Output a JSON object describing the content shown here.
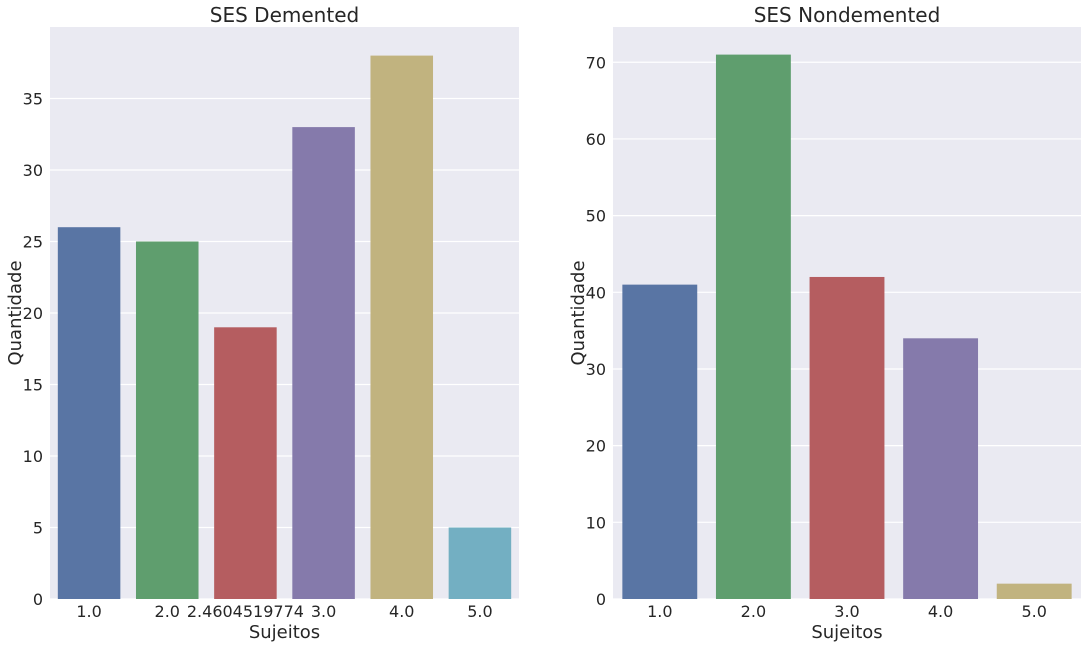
{
  "chart_data": [
    {
      "type": "bar",
      "title": "SES Demented",
      "xlabel": "Sujeitos",
      "ylabel": "Quantidade",
      "categories": [
        "1.0",
        "2.0",
        "2.4604519774",
        "3.0",
        "4.0",
        "5.0"
      ],
      "values": [
        26,
        25,
        19,
        33,
        38,
        5
      ],
      "colors": [
        "#5975a4",
        "#5f9e6e",
        "#b55d60",
        "#857aab",
        "#c1b37f",
        "#73afc2"
      ],
      "ylim": [
        0,
        40
      ],
      "yticks": [
        "0",
        "5",
        "10",
        "15",
        "20",
        "25",
        "30",
        "35"
      ],
      "grid": true
    },
    {
      "type": "bar",
      "title": "SES Nondemented",
      "xlabel": "Sujeitos",
      "ylabel": "Quantidade",
      "categories": [
        "1.0",
        "2.0",
        "3.0",
        "4.0",
        "5.0"
      ],
      "values": [
        41,
        71,
        42,
        34,
        2
      ],
      "colors": [
        "#5975a4",
        "#5f9e6e",
        "#b55d60",
        "#857aab",
        "#c1b37f"
      ],
      "ylim": [
        0,
        74.6
      ],
      "yticks": [
        "0",
        "10",
        "20",
        "30",
        "40",
        "50",
        "60",
        "70"
      ],
      "grid": true
    }
  ]
}
